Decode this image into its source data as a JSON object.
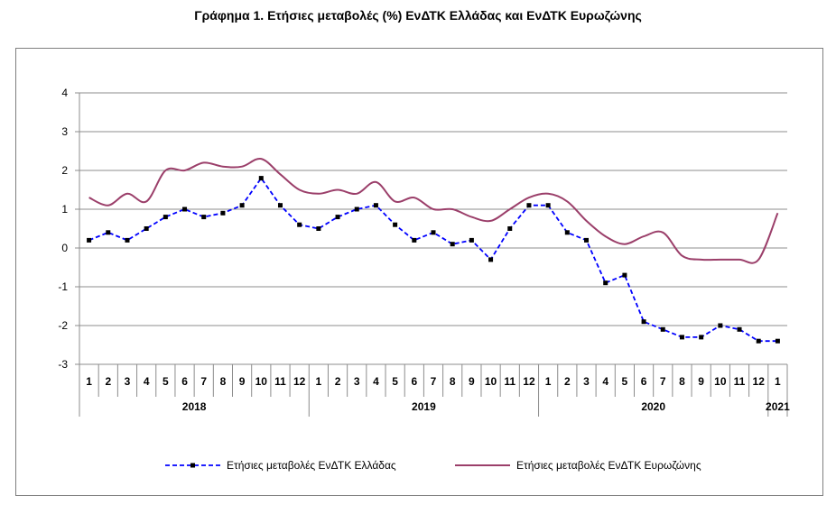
{
  "chart_data": {
    "type": "line",
    "title": "Γράφημα 1. Ετήσιες μεταβολές (%) ΕνΔΤΚ Ελλάδας και ΕνΔΤΚ Ευρωζώνης",
    "ylim": [
      -3,
      4
    ],
    "yticks": [
      "4",
      "3",
      "2",
      "1",
      "0",
      "-1",
      "-2",
      "-3"
    ],
    "ytick_values": [
      4,
      3,
      2,
      1,
      0,
      -1,
      -2,
      -3
    ],
    "months": [
      "1",
      "2",
      "3",
      "4",
      "5",
      "6",
      "7",
      "8",
      "9",
      "10",
      "11",
      "12",
      "1",
      "2",
      "3",
      "4",
      "5",
      "6",
      "7",
      "8",
      "9",
      "10",
      "11",
      "12",
      "1",
      "2",
      "3",
      "4",
      "5",
      "6",
      "7",
      "8",
      "9",
      "10",
      "11",
      "12",
      "1"
    ],
    "years": [
      {
        "label": "2018",
        "start": 0,
        "count": 12
      },
      {
        "label": "2019",
        "start": 12,
        "count": 12
      },
      {
        "label": "2020",
        "start": 24,
        "count": 12
      },
      {
        "label": "2021",
        "start": 36,
        "count": 1
      }
    ],
    "grid": "horizontal",
    "legend_position": "bottom",
    "series": [
      {
        "name": "Ετήσιες μεταβολές ΕνΔΤΚ Ελλάδας",
        "color": "#0000ff",
        "style": "dashed-markers",
        "values": [
          0.2,
          0.4,
          0.2,
          0.5,
          0.8,
          1.0,
          0.8,
          0.9,
          1.1,
          1.8,
          1.1,
          0.6,
          0.5,
          0.8,
          1.0,
          1.1,
          0.6,
          0.2,
          0.4,
          0.1,
          0.2,
          -0.3,
          0.5,
          1.1,
          1.1,
          0.4,
          0.2,
          -0.9,
          -0.7,
          -1.9,
          -2.1,
          -2.3,
          -2.3,
          -2.0,
          -2.1,
          -2.4,
          -2.4
        ]
      },
      {
        "name": "Ετήσιες μεταβολές ΕνΔΤΚ Ευρωζώνης",
        "color": "#9b3f6a",
        "style": "solid",
        "values": [
          1.3,
          1.1,
          1.4,
          1.2,
          2.0,
          2.0,
          2.2,
          2.1,
          2.1,
          2.3,
          1.9,
          1.5,
          1.4,
          1.5,
          1.4,
          1.7,
          1.2,
          1.3,
          1.0,
          1.0,
          0.8,
          0.7,
          1.0,
          1.3,
          1.4,
          1.2,
          0.7,
          0.3,
          0.1,
          0.3,
          0.4,
          -0.2,
          -0.3,
          -0.3,
          -0.3,
          -0.3,
          0.9
        ]
      }
    ]
  }
}
